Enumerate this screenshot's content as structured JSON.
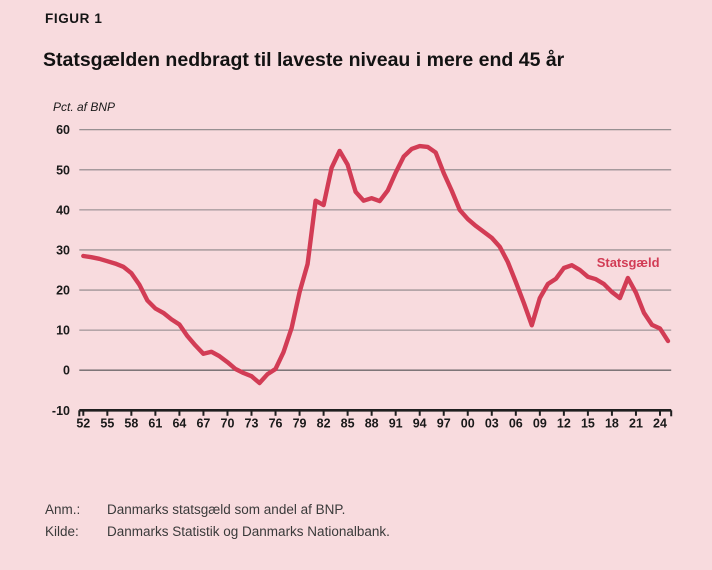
{
  "header": {
    "figure_label": "FIGUR 1",
    "title": "Statsgælden nedbragt til laveste niveau i mere end 45 år"
  },
  "chart_data": {
    "type": "line",
    "unit_label": "Pct. af BNP",
    "ylim": [
      -10,
      60
    ],
    "xlim": [
      1951.5,
      2025.4
    ],
    "grid": "horizontal",
    "legend_position": "inline-label",
    "y_ticks": [
      -10,
      0,
      10,
      20,
      30,
      40,
      50,
      60
    ],
    "x_tick_years": [
      1952,
      1955,
      1958,
      1961,
      1964,
      1967,
      1970,
      1973,
      1976,
      1979,
      1982,
      1985,
      1988,
      1991,
      1994,
      1997,
      2000,
      2003,
      2006,
      2009,
      2012,
      2015,
      2018,
      2021,
      2024
    ],
    "x_tick_labels": [
      "52",
      "55",
      "58",
      "61",
      "64",
      "67",
      "70",
      "73",
      "76",
      "79",
      "82",
      "85",
      "88",
      "91",
      "94",
      "97",
      "00",
      "03",
      "06",
      "09",
      "12",
      "15",
      "18",
      "21",
      "24"
    ],
    "series": [
      {
        "name": "Statsgæld",
        "color": "#d23c55",
        "x_start": 1952,
        "x_step": 1,
        "values": [
          28.5,
          28.2,
          27.8,
          27.2,
          26.6,
          25.8,
          24.2,
          21.3,
          17.4,
          15.4,
          14.3,
          12.7,
          11.4,
          8.5,
          6.2,
          4.1,
          4.6,
          3.5,
          2.0,
          0.3,
          -0.7,
          -1.5,
          -3.2,
          -1.0,
          0.3,
          4.5,
          10.5,
          19.5,
          26.5,
          42.3,
          41.2,
          50.5,
          54.7,
          51.3,
          44.5,
          42.3,
          42.9,
          42.2,
          44.8,
          49.3,
          53.3,
          55.2,
          55.9,
          55.7,
          54.3,
          49.2,
          44.8,
          40.0,
          37.7,
          36.0,
          34.5,
          33.0,
          30.8,
          27.0,
          22.0,
          16.8,
          11.2,
          18.0,
          21.5,
          22.8,
          25.5,
          26.2,
          25.0,
          23.3,
          22.7,
          21.5,
          19.5,
          18.0,
          23.0,
          19.3,
          14.3,
          11.3,
          10.4,
          7.3
        ]
      }
    ],
    "series_label": {
      "text": "Statsgæld",
      "anchor_year": 2016.1,
      "anchor_value": 25.8
    },
    "colors": {
      "background": "#f8dbde",
      "gridline": "#8b8587",
      "zero_line": "#6d6769",
      "axis": "#1f1f1f",
      "tick_text": "#1a1a1a",
      "line": "#d23c55"
    }
  },
  "footer": {
    "note_label": "Anm.:",
    "note_text": "Danmarks statsgæld som andel af BNP.",
    "source_label": "Kilde:",
    "source_text": "Danmarks Statistik og Danmarks Nationalbank."
  }
}
